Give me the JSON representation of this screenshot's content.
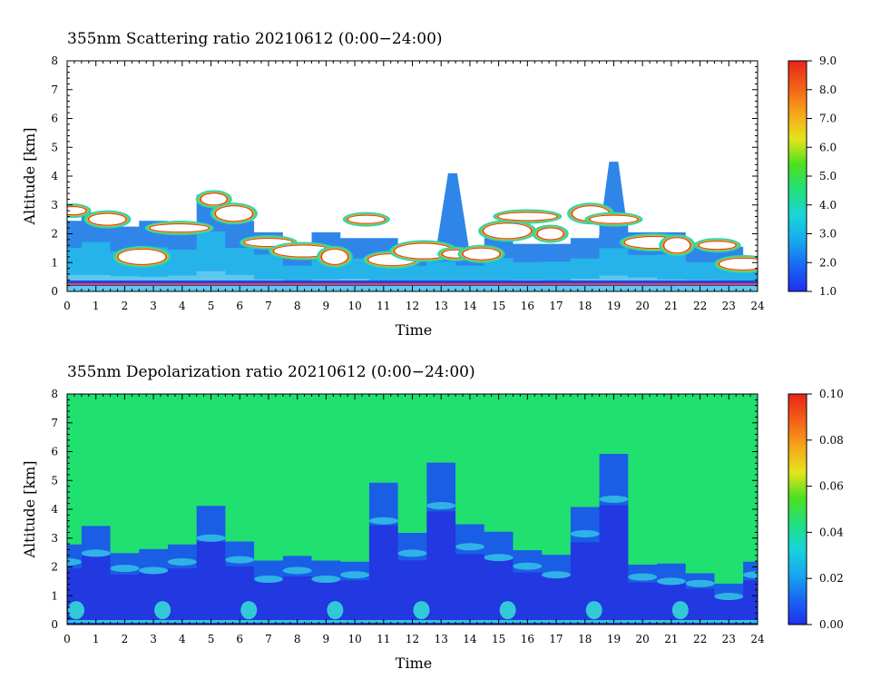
{
  "chart_data": [
    {
      "type": "heatmap",
      "title": "355nm Scattering ratio  20210612 (0:00−24:00)",
      "xlabel": "Time",
      "ylabel": "Altitude [km]",
      "xlim": [
        0,
        24
      ],
      "ylim": [
        0,
        8
      ],
      "xticks": [
        "0",
        "1",
        "2",
        "3",
        "4",
        "5",
        "6",
        "7",
        "8",
        "9",
        "10",
        "11",
        "12",
        "13",
        "14",
        "15",
        "16",
        "17",
        "18",
        "19",
        "20",
        "21",
        "22",
        "23",
        "24"
      ],
      "yticks": [
        "0",
        "1",
        "2",
        "3",
        "4",
        "5",
        "6",
        "7",
        "8"
      ],
      "colorbar": {
        "min": 1.0,
        "max": 9.0,
        "ticks": [
          "1.0",
          "2.0",
          "3.0",
          "4.0",
          "5.0",
          "6.0",
          "7.0",
          "8.0",
          "9.0"
        ]
      },
      "background_color": "#ffffff",
      "layers": [
        {
          "name": "boundary_layer_top_km",
          "x": [
            0,
            1,
            2,
            3,
            4,
            5,
            6,
            7,
            8,
            9,
            10,
            11,
            12,
            13,
            14,
            15,
            16,
            17,
            18,
            19,
            20,
            21,
            22,
            23,
            24
          ],
          "y": [
            2.6,
            2.6,
            2.4,
            2.3,
            2.5,
            3.2,
            2.6,
            1.9,
            1.6,
            1.9,
            2.0,
            1.7,
            1.6,
            1.5,
            1.6,
            1.7,
            1.8,
            1.5,
            2.0,
            2.5,
            2.2,
            1.9,
            1.8,
            1.4,
            1.2
          ]
        },
        {
          "name": "dense_cloud_layers",
          "x": [
            0.2,
            1.4,
            2.6,
            3.9,
            5.1,
            5.8,
            7.0,
            8.2,
            9.3,
            10.4,
            11.3,
            12.4,
            13.5,
            14.4,
            15.3,
            16.0,
            16.8,
            18.2,
            19.0,
            20.4,
            21.2,
            22.6,
            23.5
          ],
          "y": [
            2.8,
            2.5,
            1.2,
            2.2,
            3.2,
            2.7,
            1.7,
            1.4,
            1.2,
            2.5,
            1.1,
            1.4,
            1.3,
            1.3,
            2.1,
            2.6,
            2.0,
            2.7,
            2.5,
            1.7,
            1.6,
            1.6,
            0.95
          ]
        },
        {
          "name": "convective_plumes",
          "x": [
            13.4,
            19.0
          ],
          "y": [
            4.1,
            4.5
          ]
        }
      ]
    },
    {
      "type": "heatmap",
      "title": "355nm Depolarization ratio  20210612 (0:00−24:00)",
      "xlabel": "Time",
      "ylabel": "Altitude [km]",
      "xlim": [
        0,
        24
      ],
      "ylim": [
        0,
        8
      ],
      "xticks": [
        "0",
        "1",
        "2",
        "3",
        "4",
        "5",
        "6",
        "7",
        "8",
        "9",
        "10",
        "11",
        "12",
        "13",
        "14",
        "15",
        "16",
        "17",
        "18",
        "19",
        "20",
        "21",
        "22",
        "23",
        "24"
      ],
      "yticks": [
        "0",
        "1",
        "2",
        "3",
        "4",
        "5",
        "6",
        "7",
        "8"
      ],
      "colorbar": {
        "min": 0.0,
        "max": 0.1,
        "ticks": [
          "0.00",
          "0.02",
          "0.04",
          "0.06",
          "0.08",
          "0.10"
        ]
      },
      "background_value": 0.037,
      "layers": [
        {
          "name": "low_depolarization_region_top_km",
          "x": [
            0,
            1,
            2,
            3,
            4,
            5,
            6,
            7,
            8,
            9,
            10,
            11,
            12,
            13,
            14,
            15,
            16,
            17,
            18,
            19,
            20,
            21,
            22,
            23,
            24
          ],
          "y": [
            2.9,
            3.3,
            2.6,
            2.5,
            2.9,
            4.0,
            3.0,
            2.1,
            2.5,
            2.1,
            2.3,
            4.8,
            3.3,
            5.5,
            3.6,
            3.1,
            2.7,
            2.3,
            4.2,
            5.8,
            2.2,
            2.0,
            1.9,
            1.3,
            2.3
          ]
        }
      ]
    }
  ]
}
